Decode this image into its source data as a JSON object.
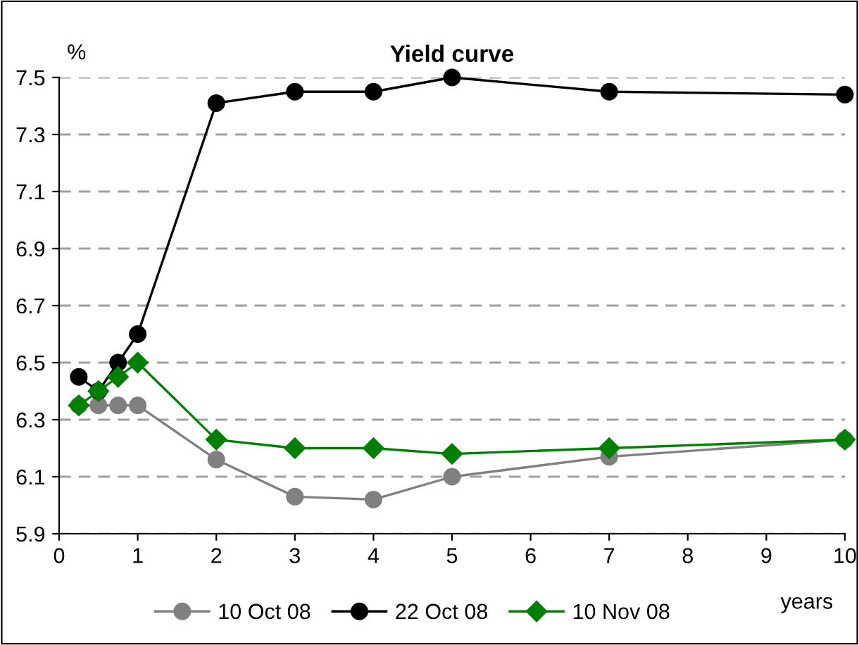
{
  "chart_data": {
    "type": "line",
    "title": "Yield curve",
    "ylabel": "%",
    "xlabel": "years",
    "xlim": [
      0,
      10
    ],
    "xticks": [
      0,
      1,
      2,
      3,
      4,
      5,
      6,
      7,
      8,
      9,
      10
    ],
    "ylim": [
      5.9,
      7.5
    ],
    "yticks": [
      5.9,
      6.1,
      6.3,
      6.5,
      6.7,
      6.9,
      7.1,
      7.3,
      7.5
    ],
    "grid": "y",
    "legend": "bottom",
    "line_style": "solid",
    "x": [
      0.25,
      0.5,
      0.75,
      1,
      2,
      3,
      4,
      5,
      7,
      10
    ],
    "series": [
      {
        "name": "10 Oct 08",
        "color": "#808080",
        "marker": "circle",
        "values": [
          6.35,
          6.35,
          6.35,
          6.35,
          6.16,
          6.03,
          6.02,
          6.1,
          6.17,
          6.23
        ]
      },
      {
        "name": "22 Oct 08",
        "color": "#000000",
        "marker": "circle",
        "values": [
          6.45,
          6.4,
          6.5,
          6.6,
          7.41,
          7.45,
          7.45,
          7.5,
          7.45,
          7.44
        ]
      },
      {
        "name": "10 Nov 08",
        "color": "#008000",
        "marker": "diamond",
        "values": [
          6.35,
          6.4,
          6.45,
          6.5,
          6.23,
          6.2,
          6.2,
          6.18,
          6.2,
          6.23
        ]
      }
    ]
  }
}
